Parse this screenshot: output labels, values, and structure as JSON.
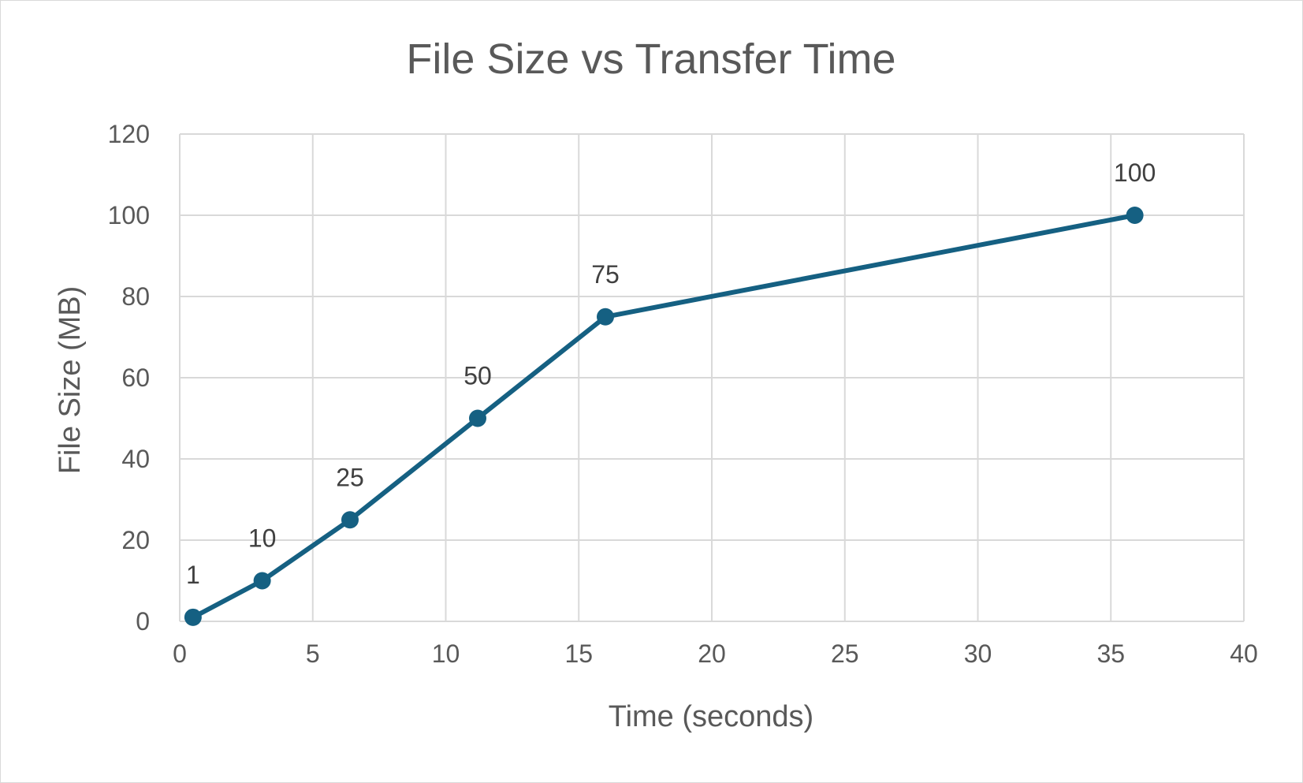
{
  "chart_data": {
    "type": "scatter",
    "title": "File Size vs Transfer Time",
    "xlabel": "Time (seconds)",
    "ylabel": "File Size (MB)",
    "xlim": [
      0,
      40
    ],
    "ylim": [
      0,
      120
    ],
    "xticks": [
      0,
      5,
      10,
      15,
      20,
      25,
      30,
      35,
      40
    ],
    "yticks": [
      0,
      20,
      40,
      60,
      80,
      100,
      120
    ],
    "grid": true,
    "legend": "none",
    "series": [
      {
        "name": "File Size",
        "x": [
          0.5,
          3.1,
          6.4,
          11.2,
          16.0,
          35.9
        ],
        "y": [
          1,
          10,
          25,
          50,
          75,
          100
        ],
        "labels": [
          "1",
          "10",
          "25",
          "50",
          "75",
          "100"
        ],
        "markers": true,
        "connected": true
      }
    ],
    "colors": {
      "series": "#156082",
      "grid": "#d9d9d9",
      "text": "#595959"
    }
  }
}
